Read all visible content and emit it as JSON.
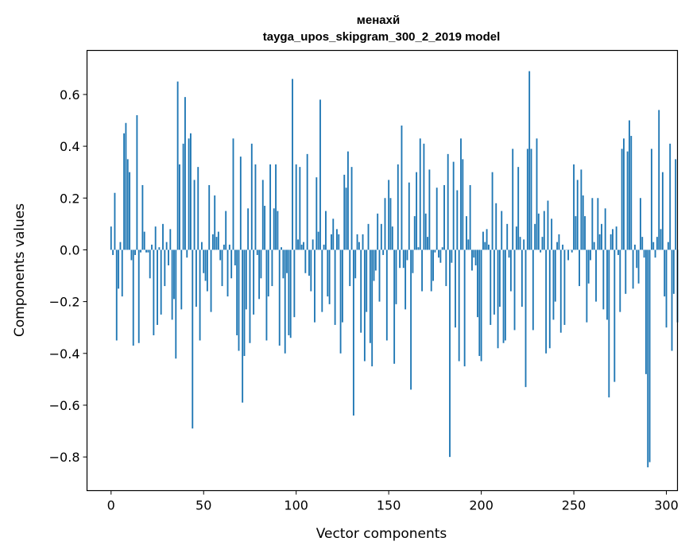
{
  "chart_data": {
    "type": "bar",
    "title": "менахй",
    "subtitle": "tayga_upos_skipgram_300_2_2019 model",
    "xlabel": "Vector components",
    "ylabel": "Components values",
    "xlim": [
      -13,
      306
    ],
    "ylim": [
      -0.93,
      0.77
    ],
    "xticks": [
      0,
      50,
      100,
      150,
      200,
      250,
      300
    ],
    "yticks": [
      -0.8,
      -0.6,
      -0.4,
      -0.2,
      0.0,
      0.2,
      0.4,
      0.6
    ],
    "ytick_labels": [
      "−0.8",
      "−0.6",
      "−0.4",
      "−0.2",
      "0.0",
      "0.2",
      "0.4",
      "0.6"
    ],
    "bar_color": "#1f77b4",
    "series": [
      {
        "name": "менахй",
        "values": [
          0.09,
          -0.02,
          0.22,
          -0.35,
          -0.15,
          0.03,
          -0.18,
          0.45,
          0.49,
          0.35,
          0.3,
          -0.04,
          -0.37,
          -0.02,
          0.52,
          -0.36,
          -0.01,
          0.25,
          0.07,
          -0.01,
          -0.01,
          -0.11,
          0.02,
          -0.33,
          0.09,
          -0.29,
          0.01,
          -0.25,
          0.1,
          -0.14,
          0.03,
          -0.06,
          0.08,
          -0.27,
          -0.19,
          -0.42,
          0.65,
          0.33,
          -0.23,
          0.41,
          0.59,
          -0.03,
          0.43,
          0.45,
          -0.69,
          0.27,
          -0.22,
          0.32,
          -0.35,
          0.03,
          -0.09,
          -0.12,
          -0.16,
          0.25,
          -0.24,
          0.06,
          0.21,
          0.05,
          0.07,
          -0.04,
          -0.14,
          0.02,
          0.15,
          -0.18,
          0.02,
          -0.11,
          0.43,
          -0.06,
          -0.33,
          -0.39,
          0.36,
          -0.59,
          -0.41,
          -0.23,
          0.16,
          -0.36,
          0.41,
          -0.25,
          0.33,
          -0.02,
          -0.19,
          -0.11,
          0.27,
          0.17,
          -0.35,
          -0.18,
          0.33,
          -0.14,
          0.16,
          0.33,
          0.15,
          -0.37,
          0.01,
          -0.11,
          -0.4,
          -0.09,
          -0.33,
          -0.34,
          0.66,
          -0.26,
          0.33,
          0.04,
          0.32,
          0.02,
          0.03,
          -0.09,
          0.37,
          -0.1,
          -0.16,
          0.04,
          -0.28,
          0.28,
          0.07,
          0.58,
          -0.24,
          0.02,
          0.15,
          -0.18,
          -0.21,
          0.06,
          0.12,
          -0.29,
          0.08,
          0.06,
          -0.4,
          -0.28,
          0.29,
          0.24,
          0.38,
          -0.14,
          0.32,
          -0.64,
          -0.11,
          0.06,
          0.03,
          -0.32,
          0.06,
          -0.43,
          -0.24,
          0.1,
          -0.36,
          -0.45,
          -0.12,
          -0.08,
          0.14,
          -0.2,
          0.1,
          -0.02,
          0.2,
          -0.35,
          0.27,
          0.2,
          0.09,
          -0.44,
          -0.21,
          0.33,
          -0.07,
          0.48,
          -0.07,
          -0.23,
          -0.04,
          0.26,
          -0.54,
          -0.09,
          0.13,
          0.3,
          0.01,
          0.43,
          -0.16,
          0.41,
          0.14,
          0.05,
          0.31,
          -0.16,
          -0.12,
          -0.01,
          0.24,
          -0.03,
          -0.05,
          0.01,
          0.25,
          -0.14,
          0.37,
          -0.8,
          -0.05,
          0.34,
          -0.3,
          0.23,
          -0.43,
          0.43,
          0.35,
          -0.45,
          0.13,
          0.04,
          0.25,
          -0.08,
          -0.03,
          -0.06,
          -0.26,
          -0.41,
          -0.43,
          0.07,
          0.03,
          0.08,
          0.02,
          -0.29,
          0.3,
          -0.25,
          0.18,
          -0.38,
          -0.22,
          0.15,
          -0.36,
          -0.35,
          0.1,
          -0.03,
          -0.16,
          0.39,
          -0.31,
          0.09,
          0.32,
          0.05,
          -0.22,
          0.04,
          -0.53,
          0.39,
          0.69,
          0.39,
          -0.31,
          0.1,
          0.43,
          0.14,
          -0.01,
          0.05,
          0.15,
          -0.4,
          0.19,
          -0.38,
          0.12,
          -0.27,
          -0.2,
          0.03,
          0.06,
          -0.32,
          0.02,
          -0.29,
          0.0,
          -0.04,
          0.0,
          -0.01,
          0.33,
          0.13,
          0.27,
          -0.14,
          0.31,
          0.21,
          0.13,
          -0.28,
          -0.13,
          -0.04,
          0.2,
          0.03,
          -0.2,
          0.2,
          0.06,
          0.1,
          -0.23,
          0.16,
          -0.27,
          -0.57,
          0.06,
          0.08,
          -0.51,
          0.09,
          -0.02,
          -0.24,
          0.39,
          0.43,
          -0.17,
          0.38,
          0.5,
          0.44,
          -0.15,
          0.02,
          -0.07,
          -0.13,
          0.2,
          0.05,
          -0.03,
          -0.48,
          -0.84,
          -0.82,
          0.39,
          0.03,
          -0.03,
          0.05,
          0.54,
          0.08,
          0.3,
          -0.18,
          -0.3,
          0.03,
          0.41,
          -0.39,
          -0.17,
          0.35,
          -0.28
        ]
      }
    ]
  }
}
